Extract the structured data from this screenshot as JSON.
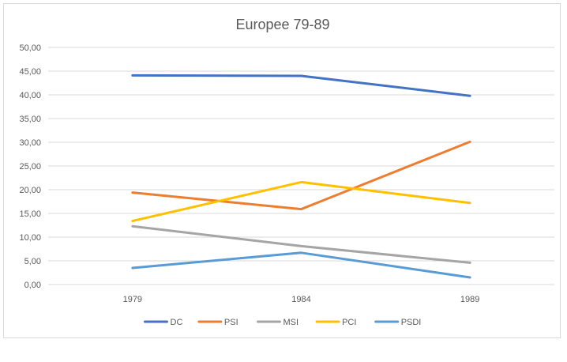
{
  "chart_data": {
    "type": "line",
    "title": "Europee 79-89",
    "categories": [
      "1979",
      "1984",
      "1989"
    ],
    "ylim": [
      0,
      50
    ],
    "ytick_step": 5,
    "ytick_labels": [
      "0,00",
      "5,00",
      "10,00",
      "15,00",
      "20,00",
      "25,00",
      "30,00",
      "35,00",
      "40,00",
      "45,00",
      "50,00"
    ],
    "grid": true,
    "legend": "bottom",
    "series": [
      {
        "name": "DC",
        "color": "#4472c4",
        "values": [
          44.1,
          44.0,
          39.8
        ]
      },
      {
        "name": "PSI",
        "color": "#ed7d31",
        "values": [
          19.4,
          15.9,
          30.1
        ]
      },
      {
        "name": "MSI",
        "color": "#a5a5a5",
        "values": [
          12.3,
          8.1,
          4.6
        ]
      },
      {
        "name": "PCI",
        "color": "#ffc000",
        "values": [
          13.4,
          21.6,
          17.2
        ]
      },
      {
        "name": "PSDI",
        "color": "#5b9bd5",
        "values": [
          3.5,
          6.7,
          1.5
        ]
      }
    ]
  }
}
